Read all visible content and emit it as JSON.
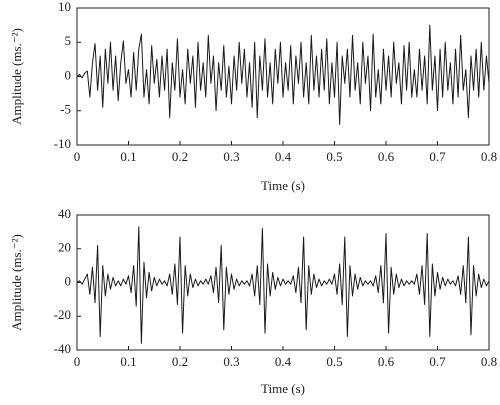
{
  "chart_data": [
    {
      "type": "line",
      "xlabel": "Time (s)",
      "ylabel": "Amplitude (ms.⁻²)",
      "color": "#1a1a1a",
      "xlim": [
        0,
        0.8
      ],
      "ylim": [
        -10,
        10
      ],
      "xticks": [
        0,
        0.1,
        0.2,
        0.3,
        0.4,
        0.5,
        0.6,
        0.7,
        0.8
      ],
      "yticks": [
        -10,
        -5,
        0,
        5,
        10
      ],
      "x": [
        0,
        0.005,
        0.01,
        0.015,
        0.02,
        0.025,
        0.03,
        0.035,
        0.04,
        0.045,
        0.05,
        0.055,
        0.06,
        0.065,
        0.07,
        0.075,
        0.08,
        0.085,
        0.09,
        0.095,
        0.1,
        0.105,
        0.11,
        0.115,
        0.12,
        0.125,
        0.13,
        0.135,
        0.14,
        0.145,
        0.15,
        0.155,
        0.16,
        0.165,
        0.17,
        0.175,
        0.18,
        0.185,
        0.19,
        0.195,
        0.2,
        0.205,
        0.21,
        0.215,
        0.22,
        0.225,
        0.23,
        0.235,
        0.24,
        0.245,
        0.25,
        0.255,
        0.26,
        0.265,
        0.27,
        0.275,
        0.28,
        0.285,
        0.29,
        0.295,
        0.3,
        0.305,
        0.31,
        0.315,
        0.32,
        0.325,
        0.33,
        0.335,
        0.34,
        0.345,
        0.35,
        0.355,
        0.36,
        0.365,
        0.37,
        0.375,
        0.38,
        0.385,
        0.39,
        0.395,
        0.4,
        0.405,
        0.41,
        0.415,
        0.42,
        0.425,
        0.43,
        0.435,
        0.44,
        0.445,
        0.45,
        0.455,
        0.46,
        0.465,
        0.47,
        0.475,
        0.48,
        0.485,
        0.49,
        0.495,
        0.5,
        0.505,
        0.51,
        0.515,
        0.52,
        0.525,
        0.53,
        0.535,
        0.54,
        0.545,
        0.55,
        0.555,
        0.56,
        0.565,
        0.57,
        0.575,
        0.58,
        0.585,
        0.59,
        0.595,
        0.6,
        0.605,
        0.61,
        0.615,
        0.62,
        0.625,
        0.63,
        0.635,
        0.64,
        0.645,
        0.65,
        0.655,
        0.66,
        0.665,
        0.67,
        0.675,
        0.68,
        0.685,
        0.69,
        0.695,
        0.7,
        0.705,
        0.71,
        0.715,
        0.72,
        0.725,
        0.73,
        0.735,
        0.74,
        0.745,
        0.75,
        0.755,
        0.76,
        0.765,
        0.77,
        0.775,
        0.78,
        0.785,
        0.79,
        0.795,
        0.8
      ],
      "values": [
        0,
        0.3,
        -0.2,
        0.5,
        0.8,
        -3,
        2,
        4.8,
        -2,
        3,
        -4.5,
        4,
        -1,
        5,
        -2,
        3,
        -3.5,
        2,
        5.2,
        -1,
        1,
        -3,
        3.5,
        -2,
        4,
        6.2,
        -3,
        1,
        -4,
        4.5,
        -1,
        2.5,
        -3,
        3,
        -2,
        4,
        -6,
        2,
        -2,
        5.5,
        -3,
        1,
        -4,
        4,
        -1,
        3,
        -4.5,
        5,
        -2,
        2,
        -3,
        6,
        -1,
        3,
        -5,
        2,
        -2,
        4.5,
        -3,
        1.5,
        -4,
        3,
        -2,
        5,
        -1,
        4,
        -3,
        2,
        -4.5,
        5,
        -6,
        3,
        -2,
        5.5,
        -3,
        2,
        -4,
        4,
        -1,
        5,
        -3,
        2,
        -2,
        4.5,
        -4,
        3,
        -1,
        5,
        -3,
        2,
        -4,
        6,
        -2,
        3,
        -3,
        4,
        -2,
        5.5,
        -4,
        2,
        -3,
        5,
        -7,
        3,
        -1,
        4,
        -3,
        6,
        -2,
        2,
        -4,
        5,
        -1,
        3,
        -5,
        6.2,
        -3,
        1,
        -4,
        4,
        -2,
        3,
        -3,
        5,
        -1,
        2,
        -4,
        4.5,
        -2,
        5,
        -3,
        1,
        -3,
        4,
        -2,
        3,
        -4,
        7.5,
        -2,
        3,
        -5,
        4,
        -3,
        5,
        -2,
        2,
        -4,
        4,
        -3,
        6,
        -2,
        1,
        -6,
        3,
        -2,
        4,
        -3,
        5,
        -2,
        3,
        -1
      ]
    },
    {
      "type": "line",
      "xlabel": "Time (s)",
      "ylabel": "Amplitude (ms.⁻²)",
      "color": "#1a1a1a",
      "xlim": [
        0,
        0.8
      ],
      "ylim": [
        -40,
        40
      ],
      "xticks": [
        0,
        0.1,
        0.2,
        0.3,
        0.4,
        0.5,
        0.6,
        0.7,
        0.8
      ],
      "yticks": [
        -40,
        -20,
        0,
        20,
        40
      ],
      "x": [
        0,
        0.005,
        0.01,
        0.015,
        0.02,
        0.025,
        0.03,
        0.035,
        0.04,
        0.045,
        0.05,
        0.055,
        0.06,
        0.065,
        0.07,
        0.075,
        0.08,
        0.085,
        0.09,
        0.095,
        0.1,
        0.105,
        0.11,
        0.115,
        0.12,
        0.125,
        0.13,
        0.135,
        0.14,
        0.145,
        0.15,
        0.155,
        0.16,
        0.165,
        0.17,
        0.175,
        0.18,
        0.185,
        0.19,
        0.195,
        0.2,
        0.205,
        0.21,
        0.215,
        0.22,
        0.225,
        0.23,
        0.235,
        0.24,
        0.245,
        0.25,
        0.255,
        0.26,
        0.265,
        0.27,
        0.275,
        0.28,
        0.285,
        0.29,
        0.295,
        0.3,
        0.305,
        0.31,
        0.315,
        0.32,
        0.325,
        0.33,
        0.335,
        0.34,
        0.345,
        0.35,
        0.355,
        0.36,
        0.365,
        0.37,
        0.375,
        0.38,
        0.385,
        0.39,
        0.395,
        0.4,
        0.405,
        0.41,
        0.415,
        0.42,
        0.425,
        0.43,
        0.435,
        0.44,
        0.445,
        0.45,
        0.455,
        0.46,
        0.465,
        0.47,
        0.475,
        0.48,
        0.485,
        0.49,
        0.495,
        0.5,
        0.505,
        0.51,
        0.515,
        0.52,
        0.525,
        0.53,
        0.535,
        0.54,
        0.545,
        0.55,
        0.555,
        0.56,
        0.565,
        0.57,
        0.575,
        0.58,
        0.585,
        0.59,
        0.595,
        0.6,
        0.605,
        0.61,
        0.615,
        0.62,
        0.625,
        0.63,
        0.635,
        0.64,
        0.645,
        0.65,
        0.655,
        0.66,
        0.665,
        0.67,
        0.675,
        0.68,
        0.685,
        0.69,
        0.695,
        0.7,
        0.705,
        0.71,
        0.715,
        0.72,
        0.725,
        0.73,
        0.735,
        0.74,
        0.745,
        0.75,
        0.755,
        0.76,
        0.765,
        0.77,
        0.775,
        0.78,
        0.785,
        0.79,
        0.795,
        0.8
      ],
      "values": [
        0,
        1,
        -1,
        2,
        5,
        -7,
        9,
        -12,
        22,
        -32,
        10,
        -8,
        5,
        -4,
        3,
        -2,
        1,
        -2,
        2,
        -1,
        4,
        -6,
        10,
        -14,
        33,
        -36,
        12,
        -9,
        6,
        -5,
        3,
        -2,
        2,
        -1,
        1,
        -2,
        5,
        -7,
        11,
        -13,
        27,
        -30,
        10,
        -8,
        5,
        -3,
        2,
        -2,
        1,
        -1,
        2,
        -1,
        4,
        -6,
        9,
        -12,
        22,
        -28,
        9,
        -7,
        5,
        -4,
        2,
        -2,
        1,
        -1,
        1,
        -2,
        5,
        -8,
        10,
        -13,
        32,
        -30,
        11,
        -8,
        6,
        -4,
        3,
        -2,
        2,
        -1,
        1,
        -1,
        4,
        -6,
        9,
        -12,
        27,
        -28,
        10,
        -7,
        5,
        -3,
        2,
        -2,
        1,
        -1,
        2,
        -1,
        5,
        -7,
        11,
        -13,
        27,
        -32,
        10,
        -8,
        5,
        -4,
        3,
        -2,
        1,
        -1,
        1,
        -2,
        4,
        -6,
        10,
        -12,
        29,
        -30,
        9,
        -7,
        5,
        -3,
        2,
        -2,
        1,
        -1,
        1,
        -1,
        5,
        -7,
        10,
        -13,
        29,
        -32,
        11,
        -8,
        6,
        -4,
        3,
        -2,
        2,
        -1,
        1,
        -2,
        4,
        -7,
        10,
        -12,
        27,
        -31,
        10,
        -8,
        5,
        -3,
        2,
        -2,
        1
      ]
    }
  ]
}
